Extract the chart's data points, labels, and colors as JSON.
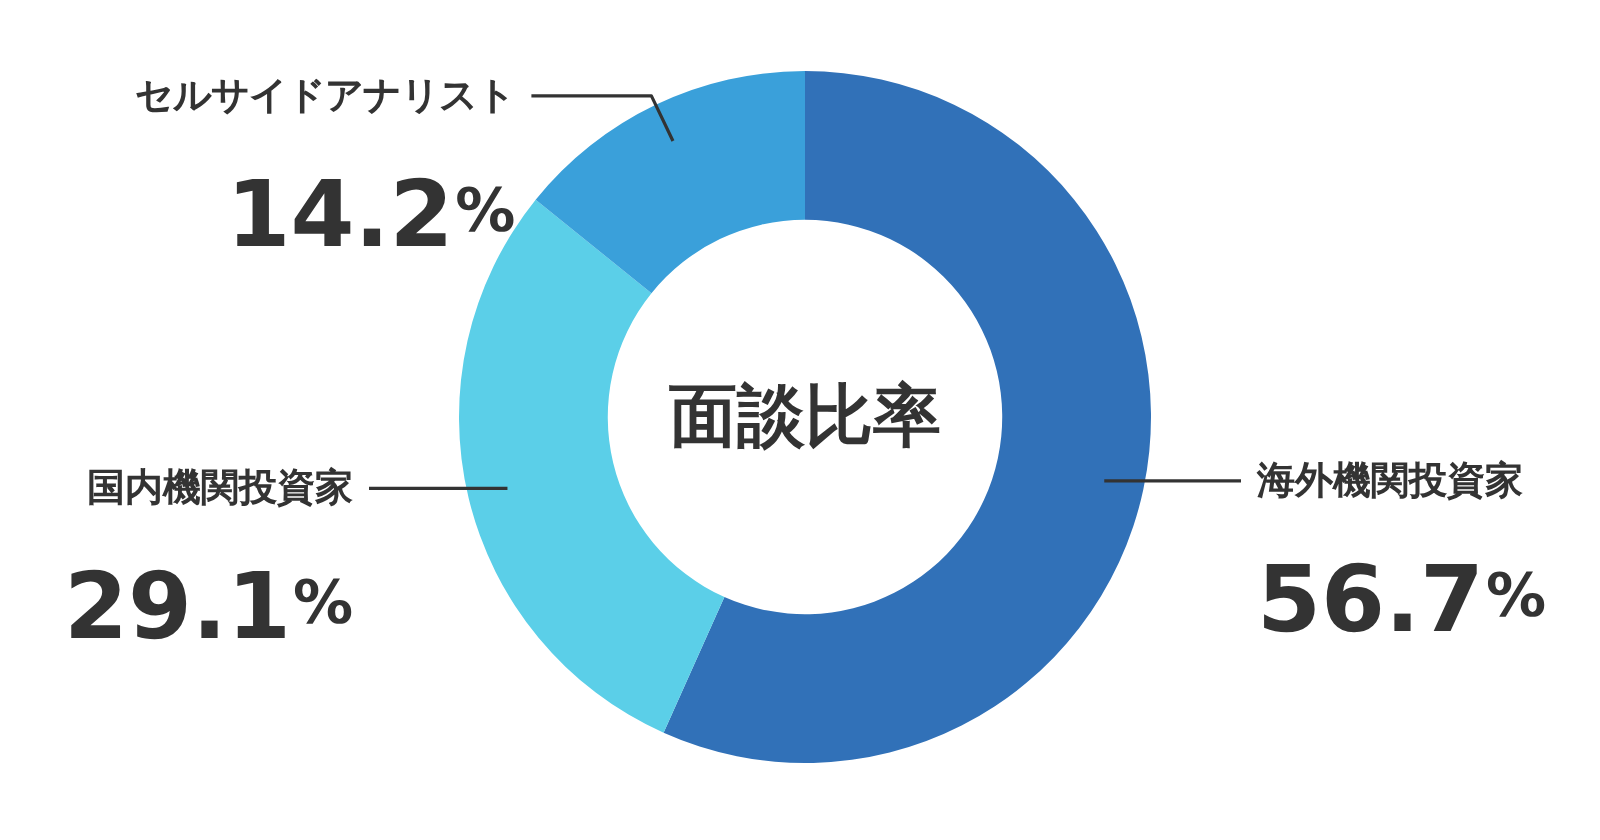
{
  "chart_data": {
    "type": "donut",
    "title": "面談比率",
    "categories": [
      "海外機関投資家",
      "国内機関投資家",
      "セルサイドアナリスト"
    ],
    "values": [
      56.7,
      29.1,
      14.2
    ],
    "colors": [
      "#3171b8",
      "#5bcfe8",
      "#3aa0da"
    ],
    "value_labels": [
      "56.7%",
      "29.1%",
      "14.2%"
    ]
  }
}
